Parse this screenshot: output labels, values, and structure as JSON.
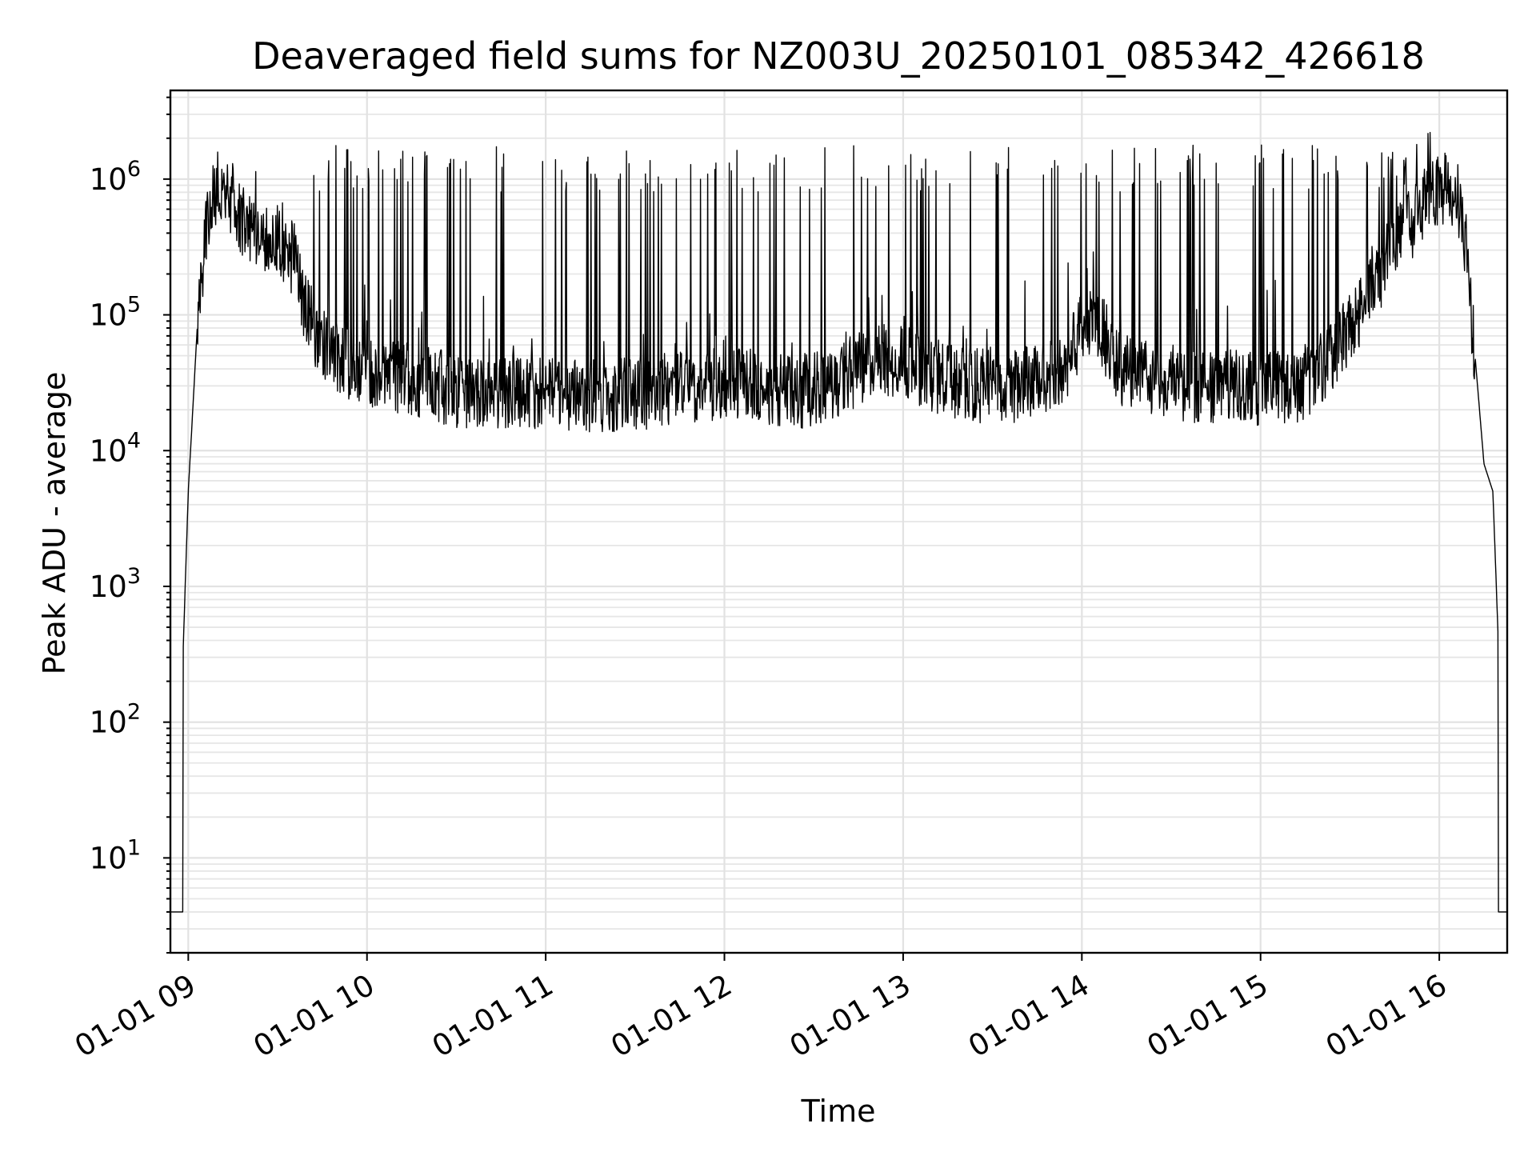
{
  "chart_data": {
    "type": "line",
    "title": "Deaveraged field sums for NZ003U_20250101_085342_426618",
    "xlabel": "Time",
    "ylabel": "Peak ADU - average",
    "x_tick_labels": [
      "01-01 09",
      "01-01 10",
      "01-01 11",
      "01-01 12",
      "01-01 13",
      "01-01 14",
      "01-01 15",
      "01-01 16"
    ],
    "x_ticks_hours": [
      9,
      10,
      11,
      12,
      13,
      14,
      15,
      16
    ],
    "xlim_hours": [
      8.9,
      16.38
    ],
    "y_scale": "log",
    "y_tick_values": [
      10,
      100,
      1000,
      10000,
      100000,
      1000000
    ],
    "y_tick_mantissa": "10",
    "y_tick_exponents": [
      "1",
      "2",
      "3",
      "4",
      "5",
      "6"
    ],
    "ylim": [
      2,
      4500000
    ],
    "grid": true,
    "line_color": "#000000",
    "series": [
      {
        "x_hours": [
          8.9,
          8.95,
          8.97,
          9.0,
          9.02,
          9.05,
          9.08,
          9.12,
          9.15,
          9.2,
          9.25,
          9.3,
          9.35,
          9.4,
          9.45,
          9.5,
          9.55,
          9.6,
          9.65,
          9.7,
          9.75,
          9.8,
          9.9,
          10.0,
          10.2,
          10.4,
          10.6,
          10.8,
          11.0,
          11.2,
          11.4,
          11.6,
          11.8,
          12.0,
          12.2,
          12.4,
          12.6,
          12.8,
          13.0,
          13.2,
          13.4,
          13.6,
          13.8,
          13.9,
          14.0,
          14.1,
          14.2,
          14.4,
          14.6,
          14.8,
          15.0,
          15.2,
          15.3,
          15.4,
          15.5,
          15.6,
          15.7,
          15.8,
          15.9,
          16.0,
          16.05,
          16.1,
          16.15,
          16.2,
          16.25,
          16.3,
          16.33,
          16.35,
          16.38
        ],
        "y_baseline": [
          4,
          4,
          300,
          5000,
          15000,
          80000,
          250000,
          600000,
          850000,
          900000,
          700000,
          500000,
          450000,
          420000,
          380000,
          350000,
          300000,
          250000,
          120000,
          80000,
          60000,
          50000,
          45000,
          40000,
          35000,
          30000,
          25000,
          28000,
          27000,
          25000,
          26000,
          27000,
          30000,
          32000,
          30000,
          27000,
          30000,
          45000,
          45000,
          35000,
          30000,
          30000,
          33000,
          40000,
          80000,
          85000,
          40000,
          35000,
          30000,
          30000,
          28000,
          30000,
          35000,
          50000,
          80000,
          130000,
          250000,
          400000,
          600000,
          850000,
          900000,
          800000,
          300000,
          50000,
          8000,
          5000,
          400,
          4,
          4
        ],
        "spike_peak_approx": 1200000
      }
    ]
  }
}
